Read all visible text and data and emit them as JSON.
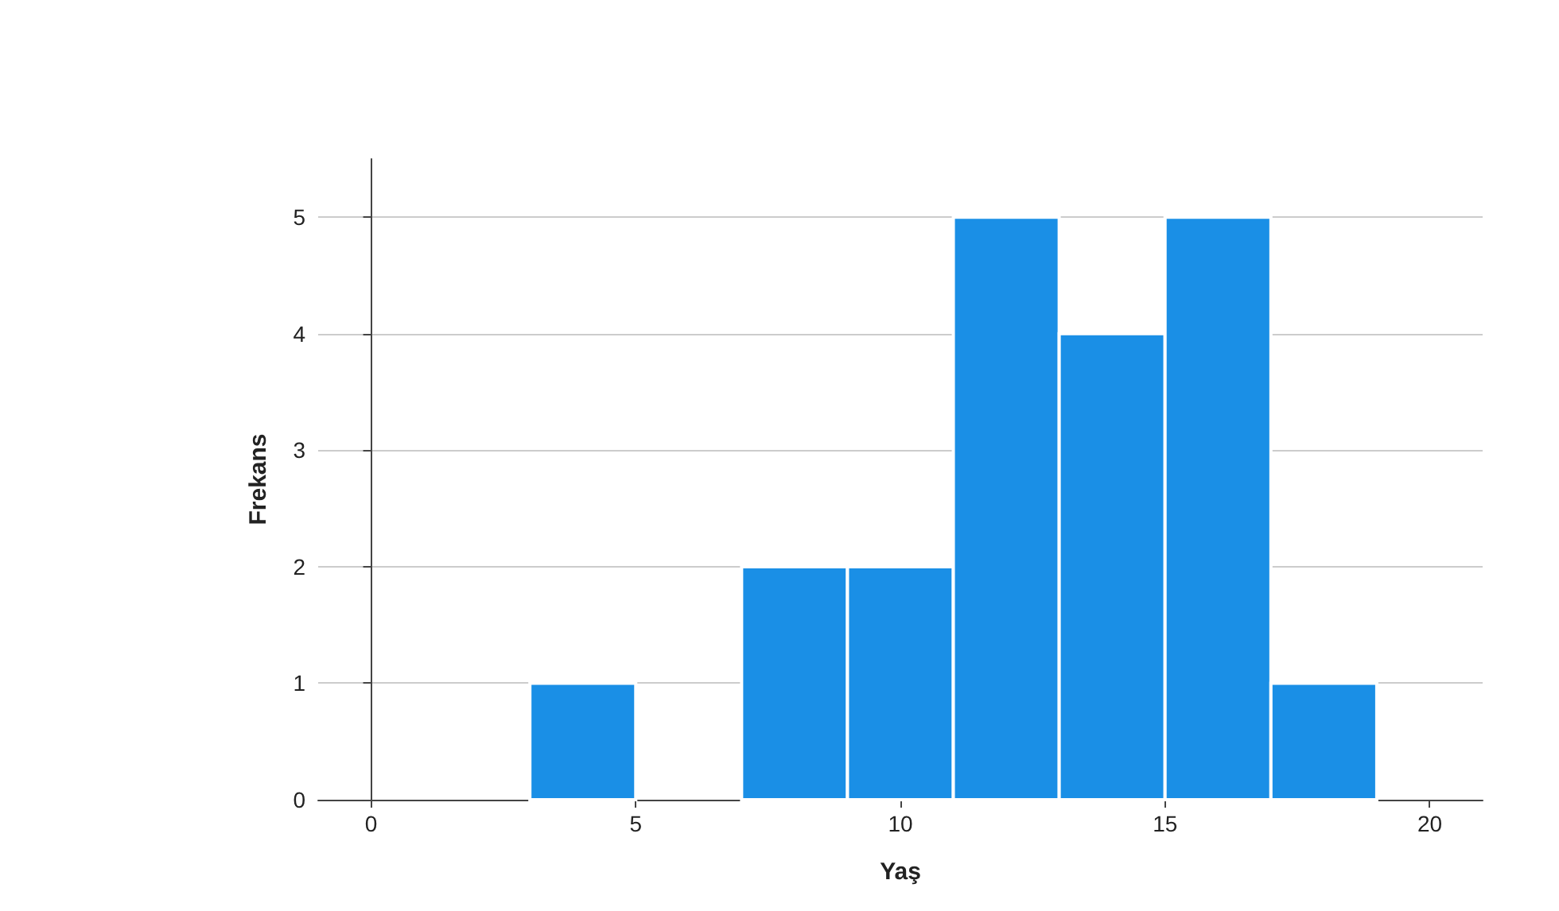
{
  "chart_data": {
    "type": "histogram",
    "xlabel": "Yaş",
    "ylabel": "Frekans",
    "bins": [
      3,
      5,
      7,
      9,
      11,
      13,
      15,
      17,
      19
    ],
    "values": [
      1,
      0,
      2,
      2,
      5,
      4,
      5,
      1
    ],
    "color": "#1a8fe6",
    "xlim": [
      -1,
      21
    ],
    "xticks": [
      0,
      5,
      10,
      15,
      20
    ],
    "ylim": [
      0,
      5.5
    ],
    "yticks": [
      0,
      1,
      2,
      3,
      4,
      5
    ],
    "grid": "y"
  }
}
